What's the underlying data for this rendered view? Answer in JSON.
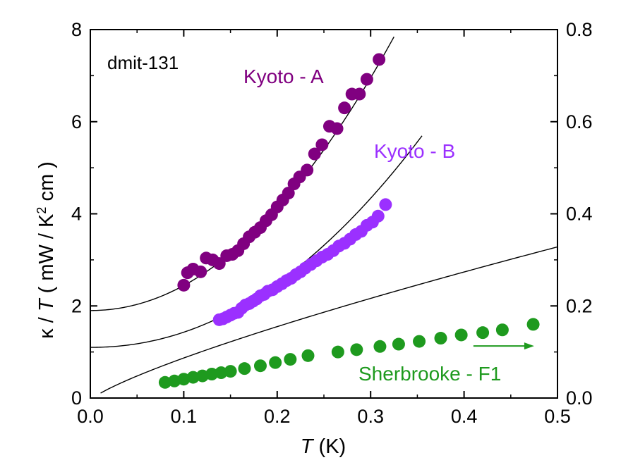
{
  "chart_data": {
    "type": "scatter",
    "title": "",
    "sample_label": "dmit-131",
    "xlabel": "T (K)",
    "xlabel_var": "T",
    "xlabel_unit": "(K)",
    "ylabel_left": "κ / T ( mW / K² cm )",
    "ylabel_parts": {
      "pre": "κ / ",
      "var": "T",
      "mid": " ( mW / K",
      "sup": "2",
      "post": " cm )"
    },
    "xlim": [
      0.0,
      0.5
    ],
    "ylim_left": [
      0,
      8
    ],
    "ylim_right": [
      0.0,
      0.8
    ],
    "xticks": [
      "0.0",
      "0.1",
      "0.2",
      "0.3",
      "0.4",
      "0.5"
    ],
    "yticks_left": [
      "0",
      "2",
      "4",
      "6",
      "8"
    ],
    "yticks_right": [
      "0.0",
      "0.2",
      "0.4",
      "0.6",
      "0.8"
    ],
    "grid": false,
    "series": [
      {
        "name": "Kyoto - A",
        "axis": "left",
        "color": "#800080",
        "x": [
          0.1,
          0.104,
          0.11,
          0.118,
          0.124,
          0.131,
          0.138,
          0.146,
          0.152,
          0.158,
          0.164,
          0.17,
          0.176,
          0.182,
          0.188,
          0.194,
          0.2,
          0.206,
          0.212,
          0.218,
          0.224,
          0.232,
          0.24,
          0.248,
          0.256,
          0.264,
          0.272,
          0.28,
          0.288,
          0.296,
          0.309
        ],
        "y": [
          2.45,
          2.72,
          2.8,
          2.74,
          3.04,
          3.0,
          2.92,
          3.09,
          3.12,
          3.2,
          3.35,
          3.5,
          3.6,
          3.7,
          3.85,
          3.98,
          4.15,
          4.3,
          4.45,
          4.65,
          4.8,
          4.95,
          5.3,
          5.5,
          5.9,
          5.85,
          6.3,
          6.6,
          6.6,
          6.92,
          7.35
        ]
      },
      {
        "name": "Kyoto - B",
        "axis": "left",
        "color": "#9b30ff",
        "x": [
          0.138,
          0.142,
          0.146,
          0.15,
          0.154,
          0.158,
          0.162,
          0.166,
          0.17,
          0.174,
          0.178,
          0.182,
          0.186,
          0.19,
          0.195,
          0.2,
          0.205,
          0.21,
          0.215,
          0.22,
          0.225,
          0.23,
          0.236,
          0.242,
          0.248,
          0.254,
          0.26,
          0.266,
          0.272,
          0.278,
          0.284,
          0.29,
          0.296,
          0.302,
          0.308,
          0.316
        ],
        "y": [
          1.7,
          1.72,
          1.76,
          1.8,
          1.84,
          1.86,
          1.95,
          2.02,
          2.05,
          2.1,
          2.15,
          2.22,
          2.25,
          2.32,
          2.35,
          2.42,
          2.48,
          2.55,
          2.6,
          2.68,
          2.74,
          2.82,
          2.9,
          2.98,
          3.06,
          3.12,
          3.2,
          3.3,
          3.36,
          3.45,
          3.55,
          3.62,
          3.75,
          3.82,
          3.95,
          4.2
        ]
      },
      {
        "name": "Sherbrooke - F1",
        "axis": "right",
        "color": "#1e9a1e",
        "x": [
          0.08,
          0.09,
          0.1,
          0.11,
          0.12,
          0.13,
          0.14,
          0.15,
          0.165,
          0.182,
          0.198,
          0.214,
          0.233,
          0.265,
          0.285,
          0.31,
          0.33,
          0.352,
          0.375,
          0.397,
          0.42,
          0.441,
          0.474
        ],
        "y": [
          0.034,
          0.037,
          0.041,
          0.045,
          0.048,
          0.052,
          0.055,
          0.058,
          0.064,
          0.07,
          0.077,
          0.084,
          0.092,
          0.1,
          0.105,
          0.112,
          0.117,
          0.123,
          0.13,
          0.137,
          0.142,
          0.148,
          0.16
        ]
      }
    ],
    "fit_curves": [
      {
        "for": "Kyoto - A",
        "axis": "left",
        "a": 1.9,
        "b": 58.2,
        "n": 2.03,
        "x_range": [
          0.0,
          0.325
        ]
      },
      {
        "for": "Kyoto - B",
        "axis": "left",
        "a": 1.1,
        "b": 39.6,
        "n": 2.08,
        "x_range": [
          0.0,
          0.355
        ]
      },
      {
        "for": "Sherbrooke - F1",
        "axis": "right",
        "a": -0.005,
        "b": 0.58,
        "n": 0.8,
        "x_range": [
          0.011,
          0.5
        ]
      }
    ],
    "arrow": {
      "from_x": 0.41,
      "to_x": 0.475,
      "y_right": 0.113,
      "color": "#1e9a1e",
      "meaning": "right axis"
    }
  }
}
